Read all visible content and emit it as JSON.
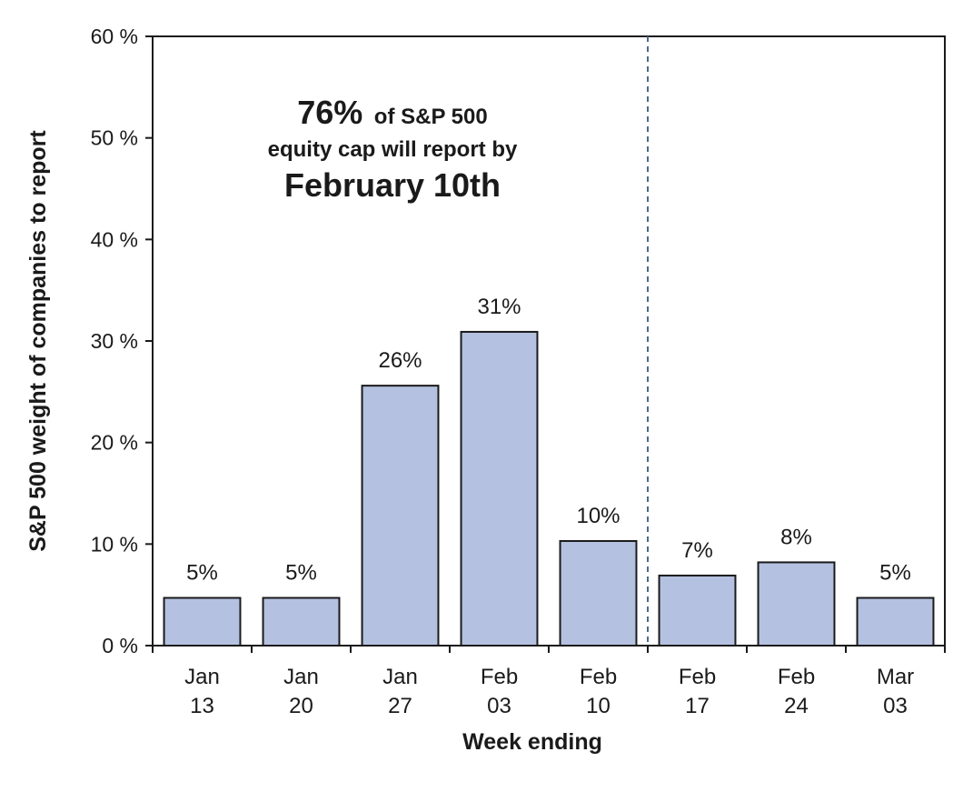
{
  "chart_data": {
    "type": "bar",
    "categories": [
      [
        "Jan",
        "13"
      ],
      [
        "Jan",
        "20"
      ],
      [
        "Jan",
        "27"
      ],
      [
        "Feb",
        "03"
      ],
      [
        "Feb",
        "10"
      ],
      [
        "Feb",
        "17"
      ],
      [
        "Feb",
        "24"
      ],
      [
        "Mar",
        "03"
      ]
    ],
    "values": [
      4.7,
      4.7,
      25.6,
      30.9,
      10.3,
      6.9,
      8.2,
      4.7
    ],
    "data_labels": [
      "5%",
      "5%",
      "26%",
      "31%",
      "10%",
      "7%",
      "8%",
      "5%"
    ],
    "xlabel": "Week ending",
    "ylabel": "S&P 500 weight of companies to report",
    "ylim": [
      0,
      60
    ],
    "y_ticks": [
      0,
      10,
      20,
      30,
      40,
      50,
      60
    ],
    "y_tick_labels": [
      "0 %",
      "10 %",
      "20 %",
      "30 %",
      "40 %",
      "50 %",
      "60 %"
    ],
    "divider_after_category": "Feb 10",
    "annotation": {
      "line1_bold": "76%",
      "line1_rest": "of S&P 500",
      "line2": "equity cap will report by",
      "line3": "February 10th"
    },
    "grid": false,
    "bar_color": "#b4c1e0",
    "bar_edge_color": "#1a1a1a",
    "divider_color": "#4a6a8a"
  }
}
